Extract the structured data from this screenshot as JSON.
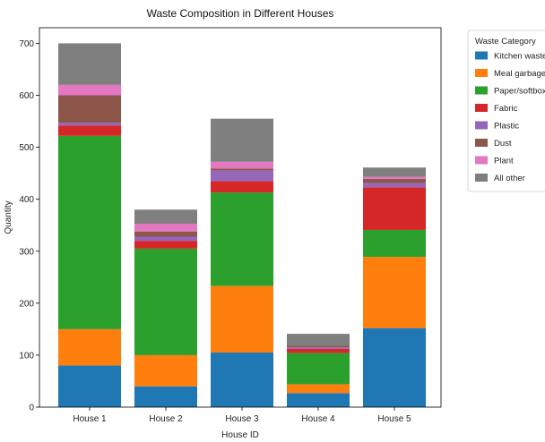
{
  "chart_data": {
    "type": "bar",
    "stacked": true,
    "title": "Waste Composition in Different Houses",
    "xlabel": "House ID",
    "ylabel": "Quantity",
    "ylim": [
      0,
      730
    ],
    "yticks": [
      0,
      100,
      200,
      300,
      400,
      500,
      600,
      700
    ],
    "categories": [
      "House 1",
      "House 2",
      "House 3",
      "House 4",
      "House 5"
    ],
    "legend_title": "Waste Category",
    "legend_position": "outside-right-top",
    "series": [
      {
        "name": "Kitchen waste",
        "color": "#1f77b4",
        "values": [
          80,
          40,
          105,
          27,
          152
        ]
      },
      {
        "name": "Meal garbage",
        "color": "#ff7f0e",
        "values": [
          70,
          60,
          128,
          17,
          137
        ]
      },
      {
        "name": "Paper/softbox",
        "color": "#2ca02c",
        "values": [
          372,
          205,
          180,
          60,
          52
        ]
      },
      {
        "name": "Fabric",
        "color": "#d62728",
        "values": [
          20,
          15,
          22,
          8,
          82
        ]
      },
      {
        "name": "Plastic",
        "color": "#9467bd",
        "values": [
          5,
          8,
          20,
          3,
          8
        ]
      },
      {
        "name": "Dust",
        "color": "#8c564b",
        "values": [
          53,
          10,
          4,
          3,
          8
        ]
      },
      {
        "name": "Plant",
        "color": "#e377c2",
        "values": [
          20,
          15,
          13,
          0,
          4
        ]
      },
      {
        "name": "All other",
        "color": "#7f7f7f",
        "values": [
          80,
          27,
          83,
          23,
          18
        ]
      }
    ]
  }
}
